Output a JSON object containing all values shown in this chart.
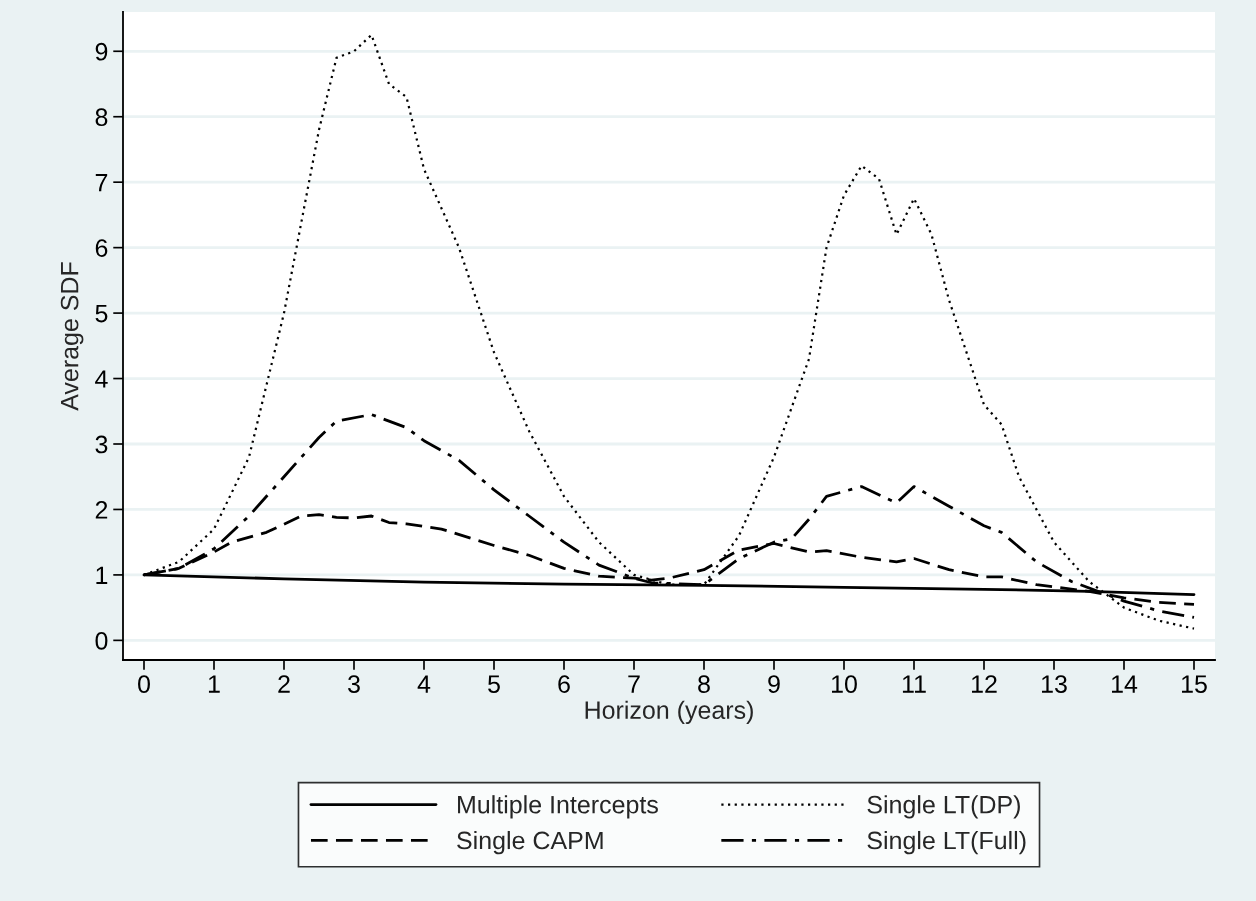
{
  "chart_data": {
    "type": "line",
    "xlabel": "Horizon (years)",
    "ylabel": "Average SDF",
    "xlim": [
      -0.3,
      15.3
    ],
    "ylim": [
      -0.3,
      9.6
    ],
    "xticks": [
      0,
      1,
      2,
      3,
      4,
      5,
      6,
      7,
      8,
      9,
      10,
      11,
      12,
      13,
      14,
      15
    ],
    "yticks": [
      0,
      1,
      2,
      3,
      4,
      5,
      6,
      7,
      8,
      9
    ],
    "grid": "y",
    "legend": "bottom",
    "marker": "none",
    "series": [
      {
        "name": "Multiple Intercepts",
        "color": "#000000",
        "line_style": "solid",
        "x": [
          0,
          2,
          4,
          6,
          8,
          10,
          12,
          13.5,
          15
        ],
        "values": [
          1,
          0.94,
          0.89,
          0.86,
          0.84,
          0.81,
          0.78,
          0.75,
          0.7
        ]
      },
      {
        "name": "Single CAPM",
        "color": "#000000",
        "line_style": "dashed",
        "x": [
          0,
          0.5,
          1,
          1.25,
          1.75,
          2.25,
          2.5,
          2.75,
          3,
          3.25,
          3.5,
          3.75,
          4.25,
          5,
          5.5,
          6,
          6.5,
          7,
          7.25,
          7.5,
          8,
          8.5,
          9,
          9.5,
          9.75,
          10.25,
          10.75,
          11,
          11.5,
          12,
          12.25,
          12.75,
          13.5,
          14,
          14.5,
          15
        ],
        "values": [
          1,
          1.1,
          1.35,
          1.5,
          1.65,
          1.9,
          1.92,
          1.88,
          1.87,
          1.9,
          1.8,
          1.78,
          1.7,
          1.45,
          1.3,
          1.1,
          0.98,
          0.95,
          0.92,
          0.95,
          1.08,
          1.38,
          1.48,
          1.35,
          1.37,
          1.27,
          1.2,
          1.25,
          1.08,
          0.97,
          0.97,
          0.85,
          0.75,
          0.65,
          0.58,
          0.55
        ]
      },
      {
        "name": "Single LT(DP)",
        "color": "#000000",
        "line_style": "dotted",
        "x": [
          0,
          0.5,
          1,
          1.5,
          2,
          2.5,
          2.75,
          3,
          3.25,
          3.5,
          3.75,
          4,
          4.5,
          5,
          5.5,
          6,
          6.5,
          7,
          7.5,
          8,
          8.5,
          9,
          9.5,
          9.75,
          10,
          10.25,
          10.5,
          10.75,
          11,
          11.25,
          11.5,
          12,
          12.25,
          12.5,
          13,
          13.5,
          14,
          14.5,
          15
        ],
        "values": [
          1,
          1.2,
          1.7,
          2.8,
          5,
          7.8,
          8.9,
          9.0,
          9.25,
          8.5,
          8.3,
          7.2,
          6,
          4.4,
          3.2,
          2.2,
          1.5,
          1.0,
          0.85,
          0.85,
          1.6,
          2.8,
          4.3,
          6,
          6.8,
          7.25,
          7.05,
          6.2,
          6.75,
          6.2,
          5.2,
          3.6,
          3.3,
          2.5,
          1.5,
          0.9,
          0.5,
          0.3,
          0.18
        ]
      },
      {
        "name": "Single LT(Full)",
        "color": "#000000",
        "line_style": "dashdot",
        "x": [
          0,
          0.5,
          1,
          1.5,
          2,
          2.5,
          2.75,
          3.25,
          3.75,
          4,
          4.5,
          5,
          5.5,
          6,
          6.5,
          7,
          7.25,
          8,
          8.5,
          9,
          9.25,
          9.5,
          9.75,
          10.25,
          10.75,
          11,
          11.5,
          12,
          12.25,
          12.75,
          13.25,
          13.75,
          14,
          14.5,
          15
        ],
        "values": [
          1,
          1.1,
          1.4,
          1.9,
          2.5,
          3.1,
          3.35,
          3.45,
          3.25,
          3.05,
          2.75,
          2.3,
          1.9,
          1.5,
          1.15,
          0.95,
          0.88,
          0.85,
          1.25,
          1.5,
          1.55,
          1.85,
          2.2,
          2.35,
          2.1,
          2.35,
          2.05,
          1.75,
          1.65,
          1.2,
          0.9,
          0.7,
          0.6,
          0.45,
          0.35
        ]
      }
    ]
  }
}
